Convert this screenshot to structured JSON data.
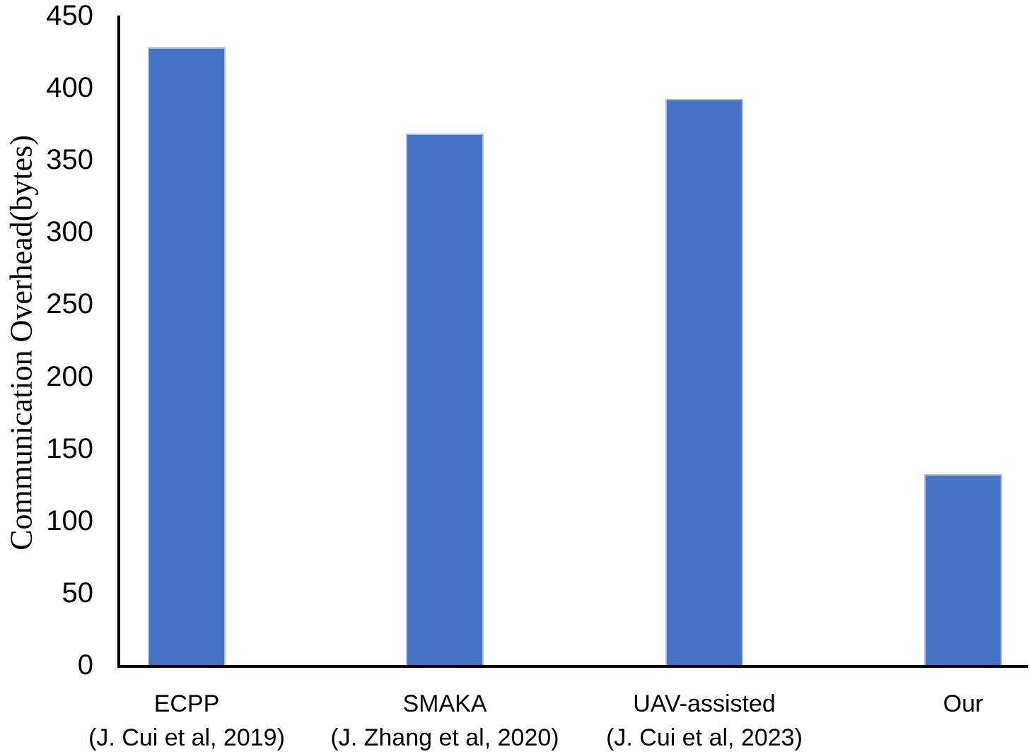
{
  "chart_data": {
    "type": "bar",
    "categories": [
      {
        "label_line1": "ECPP",
        "label_line2": "(J. Cui et al, 2019)"
      },
      {
        "label_line1": "SMAKA",
        "label_line2": "(J. Zhang et al, 2020)"
      },
      {
        "label_line1": "UAV-assisted",
        "label_line2": "(J. Cui et al, 2023)"
      },
      {
        "label_line1": "Our",
        "label_line2": ""
      }
    ],
    "values": [
      428,
      368,
      392,
      132
    ],
    "ylabel": "Communication Overhead(bytes)",
    "xlabel": "",
    "ylim": [
      0,
      450
    ],
    "yticks": [
      0,
      50,
      100,
      150,
      200,
      250,
      300,
      350,
      400,
      450
    ],
    "grid": false,
    "legend": false,
    "bar_color": "#4472C4",
    "bar_edge_color": "#a9bfe6",
    "axis_color": "#000000"
  }
}
